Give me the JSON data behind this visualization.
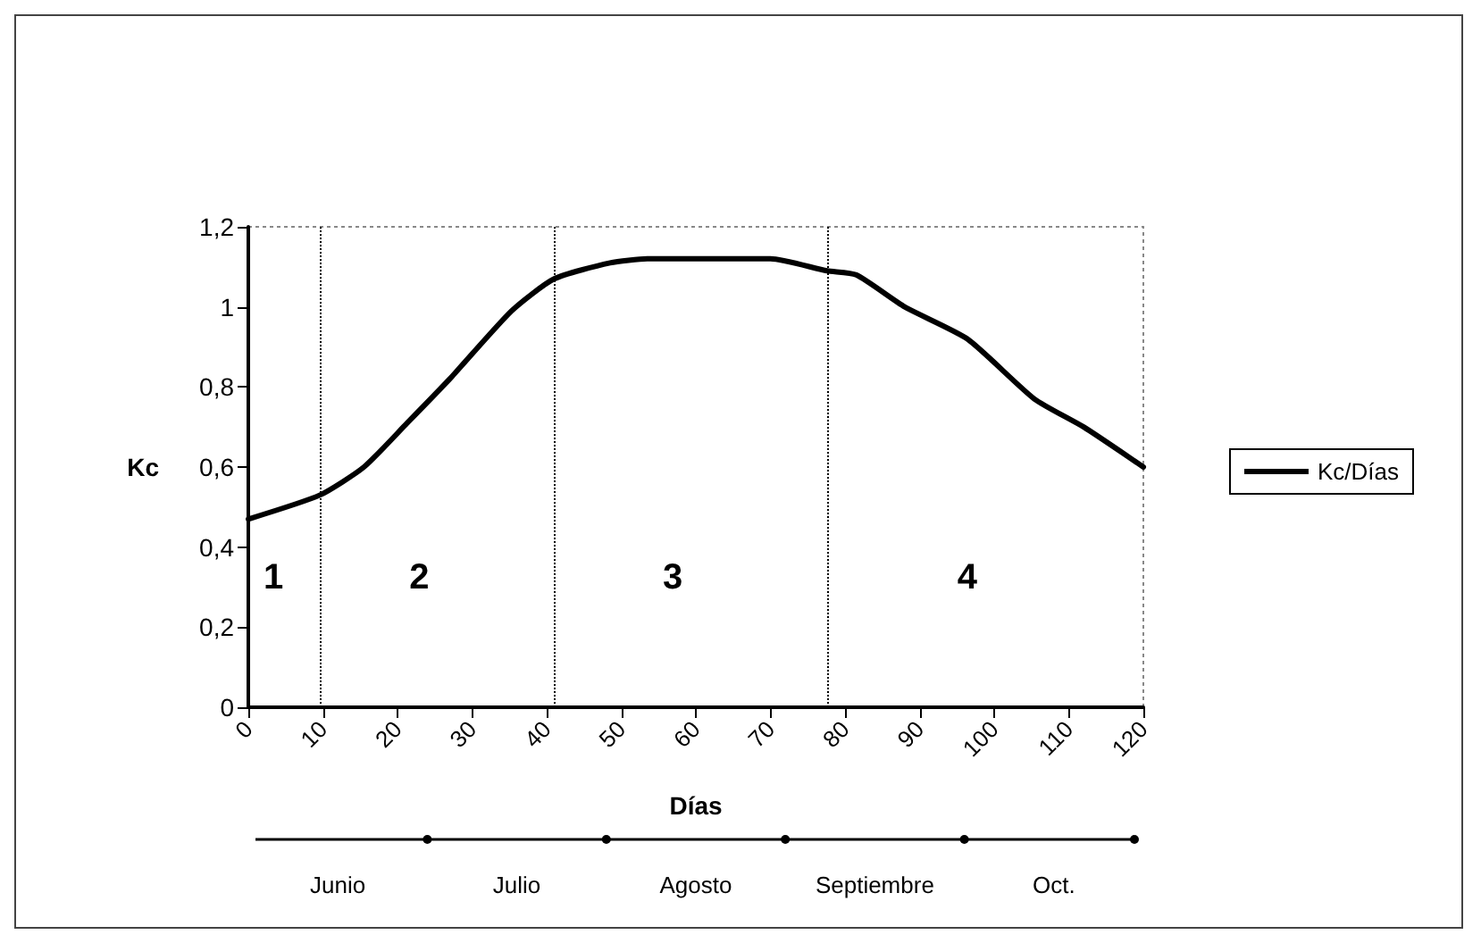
{
  "chart_data": {
    "type": "line",
    "xlabel": "Días",
    "ylabel": "Kc",
    "x": [
      0,
      9.6,
      15.5,
      21.3,
      27,
      35.3,
      41,
      48.5,
      53.5,
      70,
      77.6,
      81.5,
      88,
      96.4,
      105.4,
      112,
      120
    ],
    "series": [
      {
        "name": "Kc/Días",
        "color": "#000000",
        "values": [
          0.47,
          0.53,
          0.6,
          0.71,
          0.82,
          0.99,
          1.07,
          1.11,
          1.12,
          1.12,
          1.09,
          1.08,
          1.0,
          0.92,
          0.77,
          0.7,
          0.6
        ]
      }
    ],
    "xlim": [
      0,
      120
    ],
    "xticks": [
      0,
      10,
      20,
      30,
      40,
      50,
      60,
      70,
      80,
      90,
      100,
      110,
      120
    ],
    "ylim": [
      0,
      1.2
    ],
    "yticks": [
      {
        "value": 0,
        "label": "0"
      },
      {
        "value": 0.2,
        "label": "0,2"
      },
      {
        "value": 0.4,
        "label": "0,4"
      },
      {
        "value": 0.6,
        "label": "0,6"
      },
      {
        "value": 0.8,
        "label": "0,8"
      },
      {
        "value": 1,
        "label": "1"
      },
      {
        "value": 1.2,
        "label": "1,2"
      }
    ],
    "ref_lines": [
      {
        "axis": "x",
        "value": 9.6,
        "line_style": "dotted"
      },
      {
        "axis": "x",
        "value": 41,
        "line_style": "dotted"
      },
      {
        "axis": "x",
        "value": 77.6,
        "line_style": "dotted"
      }
    ],
    "annotations": [
      "1",
      "2",
      "3",
      "4",
      "Junio",
      "Julio",
      "Agosto",
      "Septiembre",
      "Oct."
    ],
    "grid": false,
    "legend": "right",
    "marker": "none",
    "line_style": "solid"
  }
}
